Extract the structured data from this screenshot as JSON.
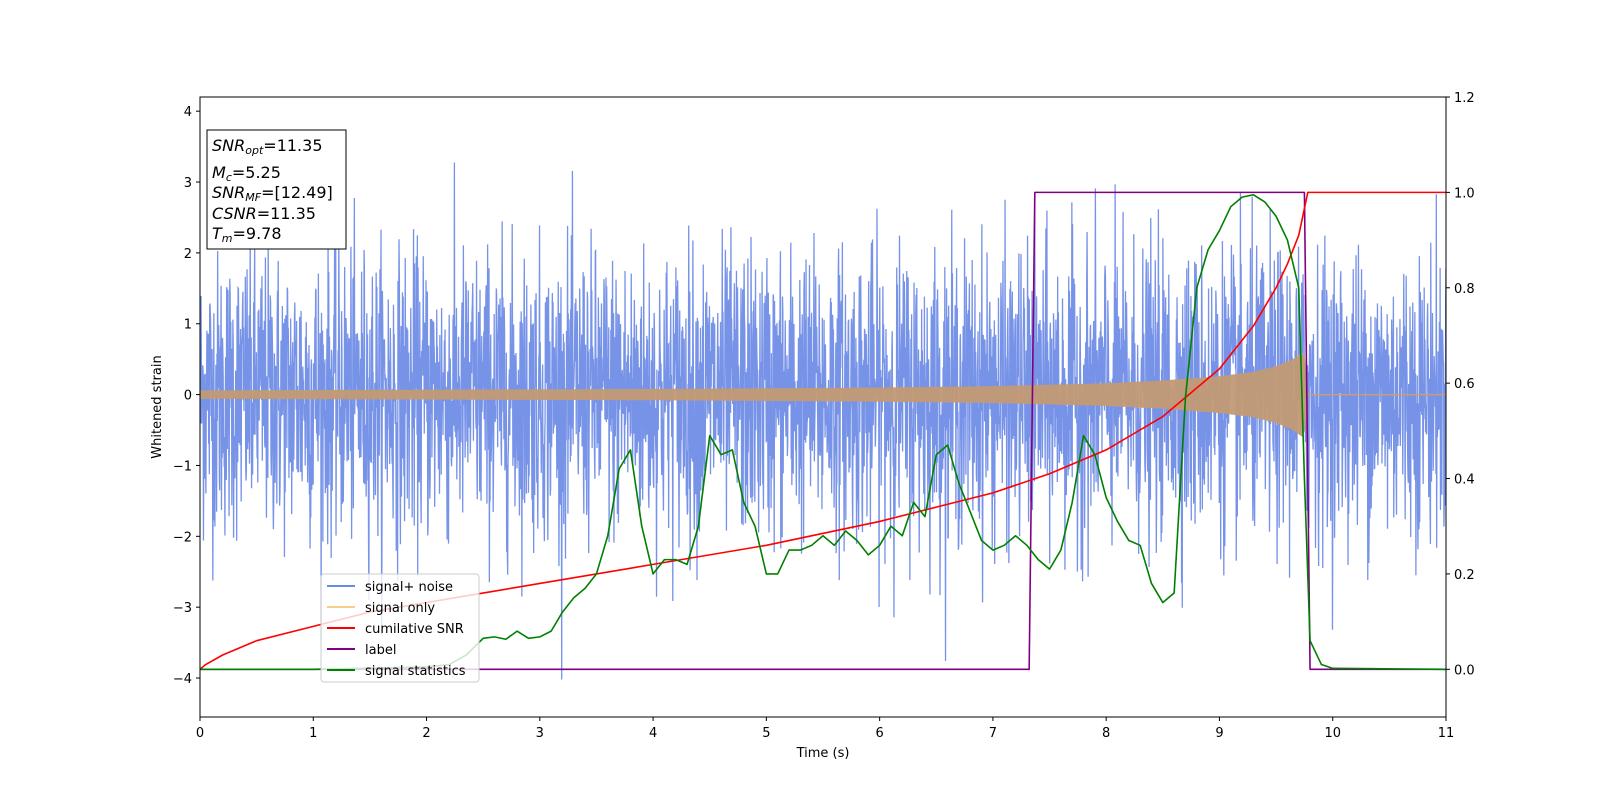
{
  "chart_data": {
    "type": "line",
    "xlabel": "Time (s)",
    "ylabel": "Whitened strain",
    "xlim": [
      0,
      11
    ],
    "ylim_left": [
      -4.55,
      4.2
    ],
    "ylim_right": [
      -0.1,
      1.2
    ],
    "x_ticks": [
      "0",
      "1",
      "2",
      "3",
      "4",
      "5",
      "6",
      "7",
      "8",
      "9",
      "10",
      "11"
    ],
    "y_ticks_left": [
      "−4",
      "−3",
      "−2",
      "−1",
      "0",
      "1",
      "2",
      "3",
      "4"
    ],
    "y_ticks_left_values": [
      -4,
      -3,
      -2,
      -1,
      0,
      1,
      2,
      3,
      4
    ],
    "y_ticks_right": [
      "0.0",
      "0.2",
      "0.4",
      "0.6",
      "0.8",
      "1.0",
      "1.2"
    ],
    "y_ticks_right_values": [
      0.0,
      0.2,
      0.4,
      0.6,
      0.8,
      1.0,
      1.2
    ],
    "grid": false,
    "legend_position": "lower-left",
    "annotation": {
      "snr_opt": {
        "label": "SNR",
        "sub": "opt",
        "value": "=11.35"
      },
      "mc": {
        "label": "M",
        "sub": "c",
        "value": "=5.25"
      },
      "snr_mf": {
        "label": "SNR",
        "sub": "MF",
        "value": "=[12.49]"
      },
      "csnr": {
        "label": "CSNR",
        "value": "=11.35"
      },
      "tm": {
        "label": "T",
        "sub": "m",
        "value": "=9.78"
      }
    },
    "series": [
      {
        "name": "signal+ noise",
        "color": "#6b8ae6",
        "axis": "left",
        "description_values": {
          "std": 1.0,
          "x_end": 11
        }
      },
      {
        "name": "signal only",
        "color": "#f5c06b",
        "axis": "left",
        "envelope": {
          "x": [
            0,
            2,
            4,
            6,
            7,
            8,
            8.5,
            9,
            9.3,
            9.5,
            9.65,
            9.75,
            9.78,
            11
          ],
          "amplitude": [
            0.06,
            0.07,
            0.08,
            0.1,
            0.12,
            0.16,
            0.2,
            0.26,
            0.32,
            0.4,
            0.5,
            0.62,
            0.0,
            0.0
          ]
        }
      },
      {
        "name": "cumilative SNR",
        "color": "#ff0000",
        "axis": "right",
        "x": [
          0,
          0.05,
          0.2,
          0.5,
          1,
          1.5,
          2,
          3,
          4,
          5,
          6,
          6.5,
          7,
          7.5,
          8,
          8.5,
          9,
          9.3,
          9.5,
          9.6,
          9.7,
          9.78,
          11
        ],
        "y": [
          0.0,
          0.01,
          0.03,
          0.06,
          0.09,
          0.12,
          0.14,
          0.18,
          0.22,
          0.26,
          0.31,
          0.34,
          0.37,
          0.41,
          0.46,
          0.53,
          0.63,
          0.72,
          0.8,
          0.85,
          0.91,
          1.0,
          1.0
        ]
      },
      {
        "name": "label",
        "color": "#800080",
        "axis": "right",
        "x": [
          0,
          7.32,
          7.37,
          9.75,
          9.8,
          11
        ],
        "y": [
          0,
          0,
          1,
          1,
          0,
          0
        ]
      },
      {
        "name": "signal statistics",
        "color": "#008000",
        "axis": "right",
        "x": [
          0,
          1.0,
          2.0,
          2.2,
          2.35,
          2.5,
          2.6,
          2.7,
          2.8,
          2.9,
          3.0,
          3.1,
          3.2,
          3.3,
          3.4,
          3.5,
          3.6,
          3.7,
          3.8,
          3.9,
          4.0,
          4.1,
          4.2,
          4.3,
          4.4,
          4.5,
          4.6,
          4.7,
          4.8,
          4.9,
          5.0,
          5.1,
          5.2,
          5.3,
          5.4,
          5.5,
          5.6,
          5.7,
          5.8,
          5.9,
          6.0,
          6.1,
          6.2,
          6.3,
          6.4,
          6.5,
          6.6,
          6.7,
          6.8,
          6.9,
          7.0,
          7.1,
          7.2,
          7.3,
          7.4,
          7.5,
          7.6,
          7.7,
          7.8,
          7.9,
          8.0,
          8.1,
          8.2,
          8.3,
          8.4,
          8.5,
          8.6,
          8.7,
          8.8,
          8.9,
          9.0,
          9.1,
          9.2,
          9.3,
          9.4,
          9.5,
          9.6,
          9.7,
          9.75,
          9.8,
          9.9,
          10.0,
          11.0
        ],
        "y": [
          0.0,
          0.0,
          0.005,
          0.01,
          0.03,
          0.065,
          0.068,
          0.063,
          0.08,
          0.065,
          0.068,
          0.08,
          0.12,
          0.15,
          0.17,
          0.2,
          0.28,
          0.42,
          0.46,
          0.3,
          0.2,
          0.23,
          0.23,
          0.22,
          0.3,
          0.49,
          0.45,
          0.46,
          0.35,
          0.3,
          0.2,
          0.2,
          0.25,
          0.25,
          0.26,
          0.28,
          0.26,
          0.29,
          0.27,
          0.24,
          0.26,
          0.3,
          0.28,
          0.35,
          0.32,
          0.45,
          0.47,
          0.39,
          0.33,
          0.27,
          0.25,
          0.26,
          0.28,
          0.26,
          0.23,
          0.21,
          0.25,
          0.35,
          0.49,
          0.45,
          0.36,
          0.31,
          0.27,
          0.26,
          0.18,
          0.14,
          0.16,
          0.57,
          0.8,
          0.88,
          0.92,
          0.97,
          0.99,
          0.995,
          0.98,
          0.95,
          0.9,
          0.8,
          0.4,
          0.06,
          0.01,
          0.002,
          0.0
        ]
      }
    ]
  }
}
